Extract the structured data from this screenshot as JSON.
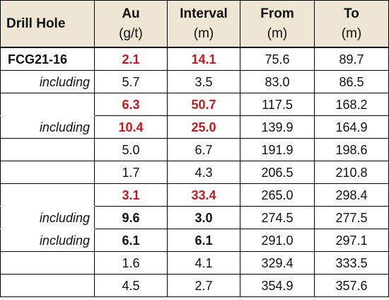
{
  "table": {
    "headers": [
      {
        "main": "Drill Hole",
        "sub": ""
      },
      {
        "main": "Au",
        "sub": "(g/t)"
      },
      {
        "main": "Interval",
        "sub": "(m)"
      },
      {
        "main": "From",
        "sub": "(m)"
      },
      {
        "main": "To",
        "sub": "(m)"
      }
    ],
    "rows": [
      {
        "label": "FCG21-16",
        "label_style": "hole",
        "au": "2.1",
        "interval": "14.1",
        "from": "75.6",
        "to": "89.7",
        "style": "red"
      },
      {
        "label": "including",
        "label_style": "italic",
        "au": "5.7",
        "interval": "3.5",
        "from": "83.0",
        "to": "86.5",
        "style": "normal"
      },
      {
        "label": "",
        "label_style": "italic",
        "au": "6.3",
        "interval": "50.7",
        "from": "117.5",
        "to": "168.2",
        "style": "red"
      },
      {
        "label": "including",
        "label_style": "italic",
        "au": "10.4",
        "interval": "25.0",
        "from": "139.9",
        "to": "164.9",
        "style": "red"
      },
      {
        "label": "",
        "label_style": "italic",
        "au": "5.0",
        "interval": "6.7",
        "from": "191.9",
        "to": "198.6",
        "style": "normal"
      },
      {
        "label": "",
        "label_style": "italic",
        "au": "1.7",
        "interval": "4.3",
        "from": "206.5",
        "to": "210.8",
        "style": "normal"
      },
      {
        "label": "",
        "label_style": "italic",
        "au": "3.1",
        "interval": "33.4",
        "from": "265.0",
        "to": "298.4",
        "style": "red"
      },
      {
        "label": "including",
        "label_style": "italic",
        "au": "9.6",
        "interval": "3.0",
        "from": "274.5",
        "to": "277.5",
        "style": "bold"
      },
      {
        "label": "including",
        "label_style": "italic",
        "au": "6.1",
        "interval": "6.1",
        "from": "291.0",
        "to": "297.1",
        "style": "bold"
      },
      {
        "label": "",
        "label_style": "italic",
        "au": "1.6",
        "interval": "4.1",
        "from": "329.4",
        "to": "333.5",
        "style": "normal"
      },
      {
        "label": "",
        "label_style": "italic",
        "au": "4.5",
        "interval": "2.7",
        "from": "354.9",
        "to": "357.6",
        "style": "normal"
      }
    ]
  },
  "colors": {
    "header_bg": "#eee6d3",
    "highlight": "#c0191f",
    "text": "#111111"
  }
}
